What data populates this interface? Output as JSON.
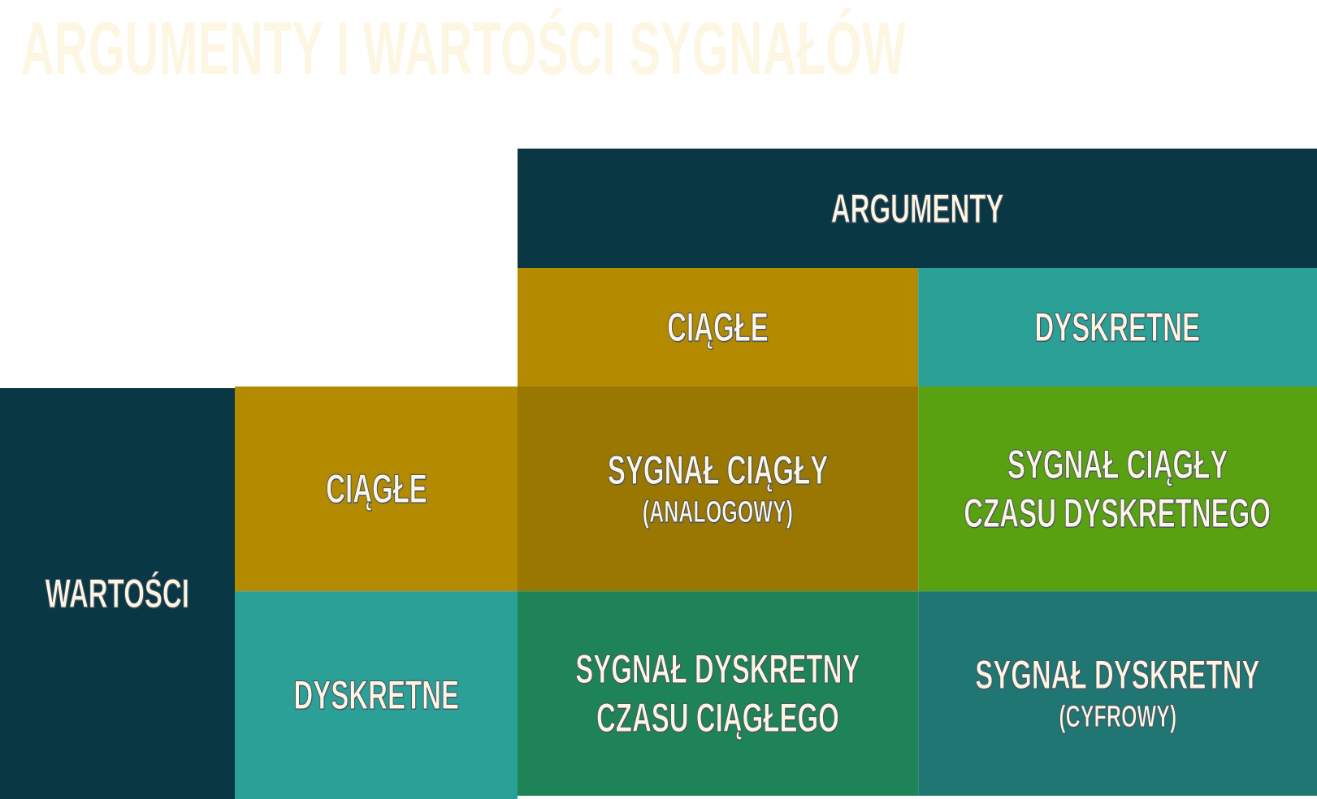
{
  "title": "ARGUMENTY I WARTOŚCI SYGNAŁÓW",
  "header": {
    "arguments": "ARGUMENTY",
    "arguments_continuous": "CIĄGŁE",
    "arguments_discrete": "DYSKRETNE"
  },
  "side": {
    "values": "WARTOŚCI",
    "values_continuous": "CIĄGŁE",
    "values_discrete": "DYSKRETNE"
  },
  "cells": {
    "cont_cont": {
      "line1": "SYGNAŁ CIĄGŁY",
      "line2": "(ANALOGOWY)"
    },
    "disc_cont": {
      "line1": "SYGNAŁ CIĄGŁY",
      "line2": "CZASU DYSKRETNEGO"
    },
    "cont_disc": {
      "line1": "SYGNAŁ DYSKRETNY",
      "line2": "CZASU CIĄGŁEGO"
    },
    "disc_disc": {
      "line1": "SYGNAŁ DYSKRETNY",
      "line2": "(CYFROWY)"
    }
  },
  "colors": {
    "navy": "#093844",
    "gold": "#b38a00",
    "teal": "#2aa096",
    "dark_gold": "#997700",
    "green": "#5aa111",
    "sea_green": "#1e8458",
    "dark_teal": "#207672",
    "text": "#fdf6e3"
  }
}
